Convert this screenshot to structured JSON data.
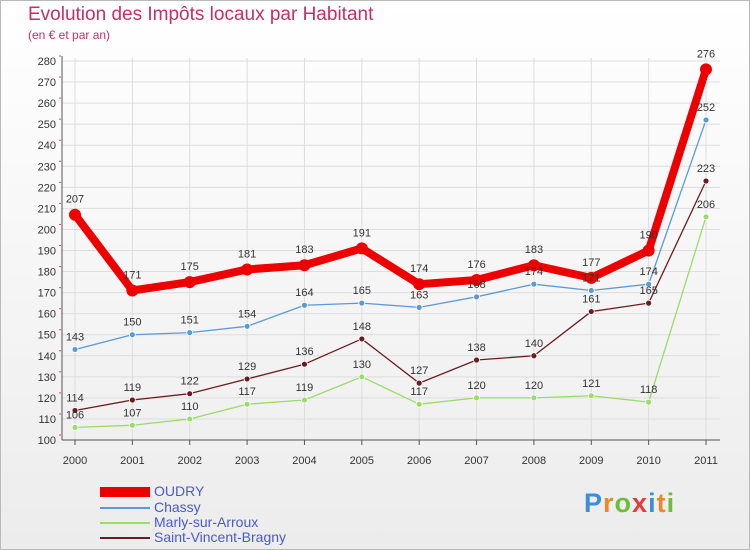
{
  "chart_data": {
    "type": "line",
    "title": "Evolution des Impôts locaux par Habitant",
    "subtitle": "(en € et par an)",
    "xlabel": "",
    "ylabel": "",
    "categories": [
      "2000",
      "2001",
      "2002",
      "2003",
      "2004",
      "2005",
      "2006",
      "2007",
      "2008",
      "2009",
      "2010",
      "2011"
    ],
    "ylim": [
      100,
      280
    ],
    "yticks": [
      100,
      110,
      120,
      130,
      140,
      150,
      160,
      170,
      180,
      190,
      200,
      210,
      220,
      230,
      240,
      250,
      260,
      270,
      280
    ],
    "grid": true,
    "legend_position": "bottom-left",
    "series": [
      {
        "name": "OUDRY",
        "color": "#ee0000",
        "values": [
          207,
          171,
          175,
          181,
          183,
          191,
          174,
          176,
          183,
          177,
          190,
          276
        ]
      },
      {
        "name": "Chassy",
        "color": "#5b9bd5",
        "values": [
          143,
          150,
          151,
          154,
          164,
          165,
          163,
          168,
          174,
          171,
          174,
          252
        ]
      },
      {
        "name": "Marly-sur-Arroux",
        "color": "#99dd66",
        "values": [
          106,
          107,
          110,
          117,
          119,
          130,
          117,
          120,
          120,
          121,
          118,
          206
        ]
      },
      {
        "name": "Saint-Vincent-Bragny",
        "color": "#6b1c22",
        "values": [
          114,
          119,
          122,
          129,
          136,
          148,
          127,
          138,
          140,
          161,
          165,
          223
        ]
      }
    ]
  },
  "brand": {
    "letters": [
      "P",
      "r",
      "o",
      "x",
      "i",
      "t",
      "i"
    ],
    "colors": [
      "#3a8fd6",
      "#e98a2a",
      "#6bbf3a",
      "#e63a3a",
      "#3a8fd6",
      "#e98a2a",
      "#6bbf3a"
    ]
  }
}
